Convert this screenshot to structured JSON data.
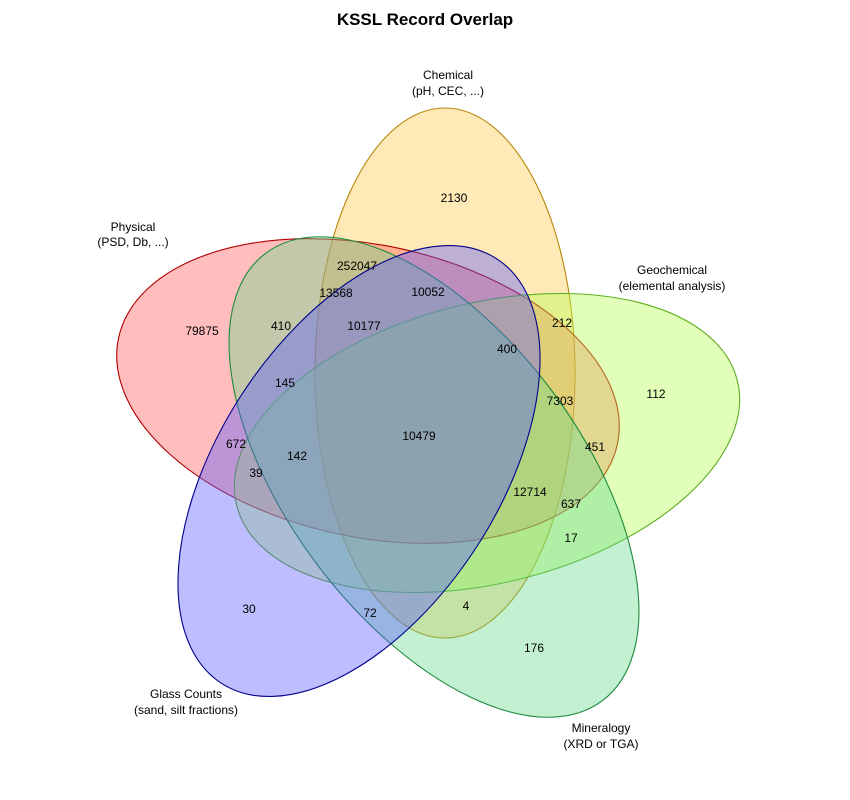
{
  "title": "KSSL Record Overlap",
  "sets": {
    "chemical": {
      "label_line1": "Chemical",
      "label_line2": "(pH, CEC, ...)",
      "fill": "#FFC748",
      "stroke": "#B8860B"
    },
    "physical": {
      "label_line1": "Physical",
      "label_line2": "(PSD, Db, ...)",
      "fill": "#FF5A5A",
      "stroke": "#B00000"
    },
    "geochemical": {
      "label_line1": "Geochemical",
      "label_line2": "(elemental analysis)",
      "fill": "#B3FF4D",
      "stroke": "#5FAF1F"
    },
    "glass": {
      "label_line1": "Glass Counts",
      "label_line2": "(sand, silt fractions)",
      "fill": "#5A5AFF",
      "stroke": "#00008B"
    },
    "mineralogy": {
      "label_line1": "Mineralogy",
      "label_line2": "(XRD or TGA)",
      "fill": "#66D98C",
      "stroke": "#1E8B3E"
    }
  },
  "counts": {
    "chemical_only": "2130",
    "physical_only": "79875",
    "geochemical_only": "112",
    "glass_only": "30",
    "mineralogy_only": "176",
    "c1": "252047",
    "c2": "13568",
    "c3": "10052",
    "c4": "410",
    "c5": "10177",
    "c6": "212",
    "c7": "400",
    "c8": "145",
    "c9": "7303",
    "c10": "10479",
    "c11": "672",
    "c12": "142",
    "c13": "451",
    "c14": "39",
    "c15": "12714",
    "c16": "637",
    "c17": "17",
    "c18": "4",
    "c19": "72"
  }
}
